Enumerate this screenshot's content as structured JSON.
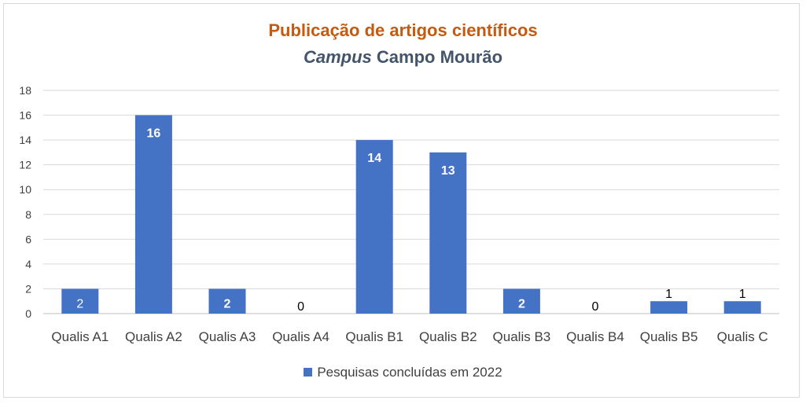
{
  "chart_data": {
    "type": "bar",
    "title": "Publicação de artigos científicos",
    "subtitle_italic": "Campus",
    "subtitle_rest": "Campo Mourão",
    "categories": [
      "Qualis A1",
      "Qualis A2",
      "Qualis A3",
      "Qualis A4",
      "Qualis B1",
      "Qualis B2",
      "Qualis B3",
      "Qualis B4",
      "Qualis B5",
      "Qualis C"
    ],
    "series": [
      {
        "name": "Pesquisas concluídas em 2022",
        "values": [
          2,
          16,
          2,
          0,
          14,
          13,
          2,
          0,
          1,
          1
        ]
      }
    ],
    "ylim": [
      0,
      18
    ],
    "yticks": [
      0,
      2,
      4,
      6,
      8,
      10,
      12,
      14,
      16,
      18
    ],
    "grid": true,
    "legend_position": "bottom",
    "bar_color": "#4472c4",
    "title_color": "#c55a11",
    "subtitle_color": "#44546a"
  }
}
